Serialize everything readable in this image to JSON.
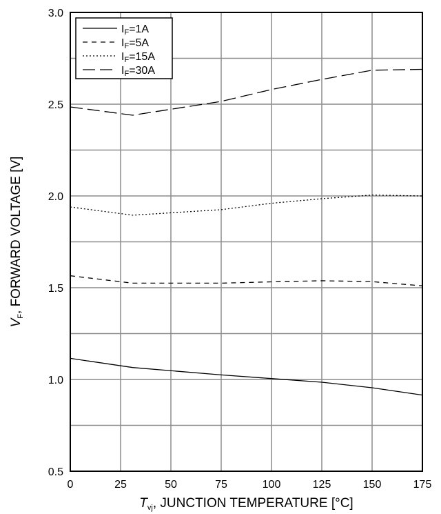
{
  "chart_data": {
    "type": "line",
    "xlabel": {
      "symbol": "T",
      "sub": "vj",
      "text": ", JUNCTION TEMPERATURE [°C]"
    },
    "ylabel": {
      "symbol": "V",
      "sub": "F",
      "text": ", FORWARD VOLTAGE [V]"
    },
    "xlim": [
      0,
      175
    ],
    "ylim": [
      0.5,
      3.0
    ],
    "xticks": [
      0,
      25,
      50,
      75,
      100,
      125,
      150,
      175
    ],
    "xtick_labels": [
      "0",
      "25",
      "50",
      "75",
      "100",
      "125",
      "150",
      "175"
    ],
    "yticks": [
      0.5,
      1.0,
      1.5,
      2.0,
      2.5,
      3.0
    ],
    "ytick_labels": [
      "0.5",
      "1.0",
      "1.5",
      "2.0",
      "2.5",
      "3.0"
    ],
    "y_minor_gridlines": [
      0.75,
      1.25,
      1.75,
      2.25,
      2.75
    ],
    "grid": true,
    "legend_position": "top-left",
    "series": [
      {
        "name": "IF=1A",
        "label_main": "I",
        "label_sub": "F",
        "label_rest": "=1A",
        "dash": "solid",
        "x": [
          0,
          31,
          75,
          100,
          125,
          150,
          175
        ],
        "y": [
          1.115,
          1.065,
          1.025,
          1.005,
          0.985,
          0.955,
          0.915
        ]
      },
      {
        "name": "IF=5A",
        "label_main": "I",
        "label_sub": "F",
        "label_rest": "=5A",
        "dash": "dashed",
        "x": [
          0,
          31,
          75,
          100,
          125,
          150,
          175
        ],
        "y": [
          1.565,
          1.525,
          1.525,
          1.532,
          1.538,
          1.533,
          1.51
        ]
      },
      {
        "name": "IF=15A",
        "label_main": "I",
        "label_sub": "F",
        "label_rest": "=15A",
        "dash": "dotted",
        "x": [
          0,
          31,
          75,
          100,
          125,
          150,
          175
        ],
        "y": [
          1.94,
          1.895,
          1.925,
          1.96,
          1.985,
          2.005,
          2.0
        ]
      },
      {
        "name": "IF=30A",
        "label_main": "I",
        "label_sub": "F",
        "label_rest": "=30A",
        "dash": "longdash",
        "x": [
          0,
          31,
          75,
          100,
          125,
          150,
          175
        ],
        "y": [
          2.485,
          2.44,
          2.515,
          2.58,
          2.635,
          2.685,
          2.69
        ]
      }
    ]
  }
}
